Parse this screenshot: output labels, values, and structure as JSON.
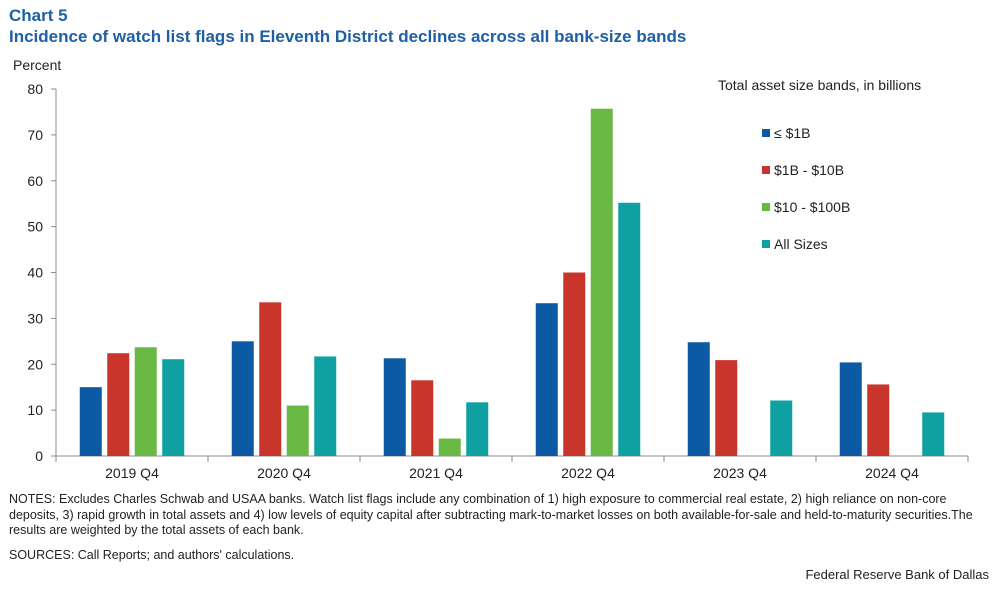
{
  "header": {
    "chart_label": "Chart 5",
    "title": "Incidence of watch list flags in Eleventh District declines across all bank-size bands"
  },
  "legend": {
    "title": "Total asset size bands, in billions"
  },
  "footer": {
    "notes": "NOTES: Excludes Charles Schwab and USAA banks. Watch list flags include any combination of 1) high exposure to commercial real estate, 2) high reliance on non-core deposits, 3) rapid growth in total assets and 4) low levels of equity capital after subtracting mark-to-market losses on both available-for-sale and held-to-maturity securities.The results are weighted by the total assets of each bank.",
    "sources": "SOURCES: Call Reports; and authors' calculations.",
    "credit": "Federal Reserve Bank of Dallas"
  },
  "chart_data": {
    "type": "bar",
    "title": "Incidence of watch list flags in Eleventh District declines across all bank-size bands",
    "xlabel": "",
    "ylabel": "Percent",
    "ylim": [
      0,
      80
    ],
    "yticks": [
      0,
      10,
      20,
      30,
      40,
      50,
      60,
      70,
      80
    ],
    "grid": false,
    "legend_position": "top-right",
    "categories": [
      "2019 Q4",
      "2020 Q4",
      "2021 Q4",
      "2022 Q4",
      "2023 Q4",
      "2024 Q4"
    ],
    "series": [
      {
        "name": "≤ $1B",
        "color": "#0b5aa3",
        "values": [
          15.0,
          25.0,
          21.3,
          33.3,
          24.8,
          20.4
        ]
      },
      {
        "name": "$1B - $10B",
        "color": "#c9342b",
        "values": [
          22.4,
          33.5,
          16.5,
          40.0,
          20.9,
          15.6
        ]
      },
      {
        "name": "$10 - $100B",
        "color": "#69b843",
        "values": [
          23.7,
          11.0,
          3.8,
          75.7,
          null,
          null
        ]
      },
      {
        "name": "All Sizes",
        "color": "#0fa1a1",
        "values": [
          21.1,
          21.7,
          11.7,
          55.2,
          12.1,
          9.5
        ]
      }
    ]
  }
}
